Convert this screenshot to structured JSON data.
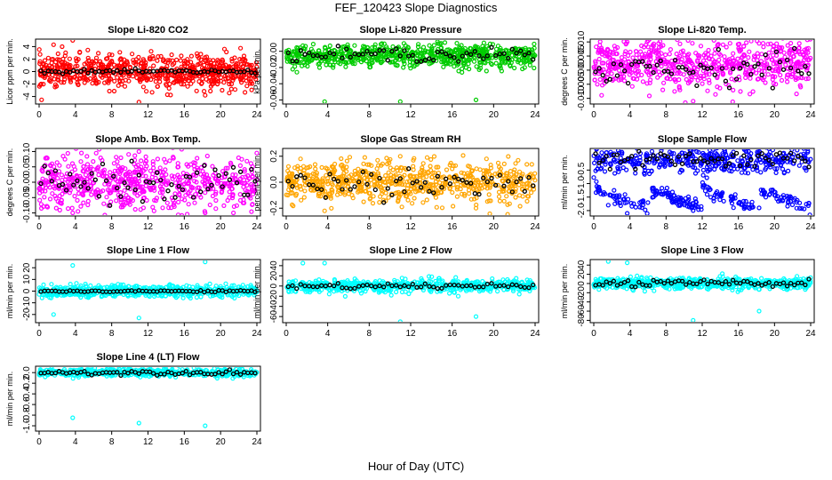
{
  "figure": {
    "title": "FEF_120423  Slope Diagnostics",
    "xlabel": "Hour of Day (UTC)"
  },
  "chart_data": [
    {
      "type": "scatter",
      "title": "Slope Li-820 CO2",
      "ylabel": "Licor ppm per min.",
      "color": "#ff0000",
      "xlim": [
        0,
        24
      ],
      "xticks": [
        0,
        4,
        8,
        12,
        16,
        20,
        24
      ],
      "ylim": [
        -5.2,
        5.2
      ],
      "yticks": [
        -4,
        -2,
        0,
        2,
        4
      ],
      "yticklabels": [
        "-4",
        "-2",
        "0",
        "2",
        "4"
      ],
      "center": 0,
      "spread": 1.3,
      "outlier_values": [
        5,
        -4.9,
        -3.8,
        4.3
      ],
      "n": 700,
      "mean_center": 0,
      "mean_spread": 0.15
    },
    {
      "type": "scatter",
      "title": "Slope Li-820 Pressure",
      "ylabel": "kPa per min.",
      "color": "#00cc00",
      "xlim": [
        0,
        24
      ],
      "xticks": [
        0,
        4,
        8,
        12,
        16,
        20,
        24
      ],
      "ylim": [
        -0.065,
        0.015
      ],
      "yticks": [
        -0.06,
        -0.04,
        -0.02,
        0
      ],
      "yticklabels": [
        "-0.06",
        "-0.04",
        "-0.02",
        "0.00"
      ],
      "center": -0.006,
      "spread": 0.007,
      "outlier_values": [
        -0.062,
        -0.062,
        -0.06,
        0.007
      ],
      "n": 700,
      "mean_center": -0.004,
      "mean_spread": 0.004
    },
    {
      "type": "scatter",
      "title": "Slope Li-820 Temp.",
      "ylabel": "degrees C per min.",
      "color": "#ff00ff",
      "xlim": [
        0,
        24
      ],
      "xticks": [
        0,
        4,
        8,
        12,
        16,
        20,
        24
      ],
      "ylim": [
        -0.012,
        0.011
      ],
      "yticks": [
        -0.01,
        -0.005,
        0,
        0.005,
        0.01
      ],
      "yticklabels": [
        "-0.010",
        "-0.005",
        "0.000",
        "0.005",
        "0.010"
      ],
      "center": 0.002,
      "spread": 0.0045,
      "outlier_values": [
        0.01,
        -0.011,
        0.0095
      ],
      "n": 650,
      "mean_center": 0.001,
      "mean_spread": 0.003
    },
    {
      "type": "scatter",
      "title": "Slope Amb. Box Temp.",
      "ylabel": "degrees C per min.",
      "color": "#ff00ff",
      "xlim": [
        0,
        24
      ],
      "xticks": [
        0,
        4,
        8,
        12,
        16,
        20,
        24
      ],
      "ylim": [
        -0.11,
        0.11
      ],
      "yticks": [
        -0.1,
        -0.05,
        0,
        0.05,
        0.1
      ],
      "yticklabels": [
        "-0.10",
        "-0.05",
        "0.00",
        "0.05",
        "0.10"
      ],
      "center": 0,
      "spread": 0.045,
      "outlier_values": [
        -0.1,
        0.1,
        -0.1
      ],
      "n": 650,
      "mean_center": 0,
      "mean_spread": 0.03
    },
    {
      "type": "scatter",
      "title": "Slope Gas Stream RH",
      "ylabel": "percent per min.",
      "color": "#ffa500",
      "xlim": [
        0,
        24
      ],
      "xticks": [
        0,
        4,
        8,
        12,
        16,
        20,
        24
      ],
      "ylim": [
        -0.26,
        0.26
      ],
      "yticks": [
        -0.2,
        0,
        0.2
      ],
      "yticklabels": [
        "-0.2",
        "0.0",
        "0.2"
      ],
      "center": 0,
      "spread": 0.08,
      "outlier_values": [
        -0.22,
        0.2,
        -0.2
      ],
      "n": 700,
      "mean_center": 0,
      "mean_spread": 0.05
    },
    {
      "type": "scatter",
      "title": "Slope Sample Flow",
      "ylabel": "ml/min per min.",
      "color": "#0000ff",
      "xlim": [
        0,
        24
      ],
      "xticks": [
        0,
        4,
        8,
        12,
        16,
        20,
        24
      ],
      "ylim": [
        -2.2,
        0.3
      ],
      "yticks": [
        -2,
        -1.5,
        -1,
        -0.5
      ],
      "yticklabels": [
        "-2.0",
        "-1.5",
        "-1.0",
        "-0.5"
      ],
      "center": -0.15,
      "spread": 0.25,
      "outlier_values": [
        -2.1,
        -2.0,
        -1.9,
        -1.8
      ],
      "n": 650,
      "mean_center": -0.15,
      "mean_spread": 0.15
    },
    {
      "type": "scatter",
      "title": "Slope Line 1 Flow",
      "ylabel": "ml/min per min.",
      "color": "#00ffff",
      "xlim": [
        0,
        24
      ],
      "xticks": [
        0,
        4,
        8,
        12,
        16,
        20,
        24
      ],
      "ylim": [
        -27,
        27
      ],
      "yticks": [
        -20,
        -10,
        0,
        10,
        20
      ],
      "yticklabels": [
        "-20",
        "-10",
        "0",
        "10",
        "20"
      ],
      "center": 0,
      "spread": 2.5,
      "outlier_values": [
        22,
        -23,
        25,
        -20
      ],
      "n": 600,
      "mean_center": 0,
      "mean_spread": 0.4
    },
    {
      "type": "scatter",
      "title": "Slope Line 2 Flow",
      "ylabel": "ml/min per min.",
      "color": "#00ffff",
      "xlim": [
        0,
        24
      ],
      "xticks": [
        0,
        4,
        8,
        12,
        16,
        20,
        24
      ],
      "ylim": [
        -72,
        52
      ],
      "yticks": [
        -60,
        -20,
        20
      ],
      "yticklabels": [
        "-60",
        "-20",
        "20"
      ],
      "extra_tick_labels": [
        {
          "v": 40,
          "label": "40"
        },
        {
          "v": 0,
          "label": "0"
        },
        {
          "v": -40,
          "label": "-40"
        }
      ],
      "center": 0,
      "spread": 6,
      "outlier_values": [
        45,
        -70,
        -60,
        45
      ],
      "n": 600,
      "mean_center": 0,
      "mean_spread": 3
    },
    {
      "type": "scatter",
      "title": "Slope Line 3 Flow",
      "ylabel": "ml/min per min.",
      "color": "#00ffff",
      "xlim": [
        0,
        24
      ],
      "xticks": [
        0,
        4,
        8,
        12,
        16,
        20,
        24
      ],
      "ylim": [
        -85,
        52
      ],
      "yticks": [
        -80,
        -40,
        0,
        40
      ],
      "yticklabels": [
        "-80",
        "-40",
        "0",
        "40"
      ],
      "extra_tick_labels": [
        {
          "v": 20,
          "label": "20"
        },
        {
          "v": -20,
          "label": "-20"
        },
        {
          "v": -60,
          "label": "-60"
        }
      ],
      "center": 0,
      "spread": 6,
      "outlier_values": [
        45,
        -80,
        -60,
        48
      ],
      "n": 600,
      "mean_center": 0,
      "mean_spread": 4
    },
    {
      "type": "scatter",
      "title": "Slope Line 4 (LT) Flow",
      "ylabel": "ml/min per min.",
      "color": "#00ffff",
      "xlim": [
        0,
        24
      ],
      "xticks": [
        0,
        4,
        8,
        12,
        16,
        20,
        24
      ],
      "ylim": [
        -1.1,
        0.12
      ],
      "yticks": [
        -1,
        -0.8,
        -0.6,
        -0.4,
        -0.2,
        0
      ],
      "yticklabels": [
        "-1.0",
        "-0.8",
        "-0.6",
        "-0.4",
        "-0.2",
        "0.0"
      ],
      "center": 0,
      "spread": 0.035,
      "outlier_values": [
        -0.85,
        -0.95,
        -1.0
      ],
      "n": 600,
      "mean_center": 0,
      "mean_spread": 0.02
    }
  ]
}
